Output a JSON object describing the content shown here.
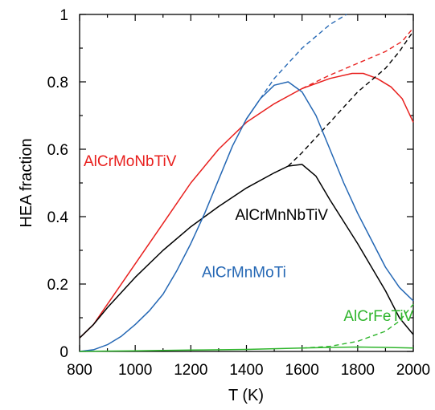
{
  "chart_data": {
    "type": "line",
    "xlabel": "T (K)",
    "ylabel": "HEA fraction",
    "xlim": [
      800,
      2000
    ],
    "ylim": [
      0,
      1
    ],
    "xticks": [
      800,
      1000,
      1200,
      1400,
      1600,
      1800,
      2000
    ],
    "yticks": [
      0,
      0.2,
      0.4,
      0.6,
      0.8,
      1
    ],
    "ytick_labels": [
      "0",
      "0.2",
      "0.4",
      "0.6",
      "0.8",
      "1"
    ],
    "grid": false,
    "series": [
      {
        "name": "AlCrMoNbTiV",
        "color": "#e8201e",
        "label_anchor": [
          800,
          0.55
        ],
        "solid": [
          [
            800,
            0.04
          ],
          [
            850,
            0.08
          ],
          [
            900,
            0.14
          ],
          [
            1000,
            0.26
          ],
          [
            1100,
            0.38
          ],
          [
            1200,
            0.5
          ],
          [
            1300,
            0.6
          ],
          [
            1400,
            0.68
          ],
          [
            1500,
            0.735
          ],
          [
            1600,
            0.78
          ],
          [
            1700,
            0.81
          ],
          [
            1780,
            0.825
          ],
          [
            1820,
            0.825
          ],
          [
            1870,
            0.81
          ],
          [
            1920,
            0.785
          ],
          [
            1960,
            0.75
          ],
          [
            2000,
            0.68
          ]
        ],
        "dashed": [
          [
            1600,
            0.78
          ],
          [
            1700,
            0.82
          ],
          [
            1800,
            0.855
          ],
          [
            1900,
            0.89
          ],
          [
            1960,
            0.92
          ],
          [
            2000,
            0.96
          ]
        ]
      },
      {
        "name": "AlCrMnNbTiV",
        "color": "#000000",
        "label_anchor": [
          1345,
          0.39
        ],
        "solid": [
          [
            800,
            0.04
          ],
          [
            850,
            0.08
          ],
          [
            900,
            0.13
          ],
          [
            1000,
            0.22
          ],
          [
            1100,
            0.3
          ],
          [
            1200,
            0.37
          ],
          [
            1300,
            0.43
          ],
          [
            1400,
            0.485
          ],
          [
            1500,
            0.53
          ],
          [
            1550,
            0.55
          ],
          [
            1600,
            0.555
          ],
          [
            1650,
            0.52
          ],
          [
            1700,
            0.45
          ],
          [
            1800,
            0.32
          ],
          [
            1900,
            0.18
          ],
          [
            1950,
            0.1
          ],
          [
            2000,
            0.05
          ]
        ],
        "dashed": [
          [
            1550,
            0.55
          ],
          [
            1600,
            0.59
          ],
          [
            1700,
            0.68
          ],
          [
            1800,
            0.77
          ],
          [
            1900,
            0.84
          ],
          [
            1950,
            0.89
          ],
          [
            2000,
            0.95
          ]
        ]
      },
      {
        "name": "AlCrMnMoTi",
        "color": "#2467b4",
        "label_anchor": [
          1225,
          0.22
        ],
        "solid": [
          [
            800,
            0.0
          ],
          [
            850,
            0.005
          ],
          [
            900,
            0.02
          ],
          [
            950,
            0.045
          ],
          [
            1000,
            0.08
          ],
          [
            1050,
            0.12
          ],
          [
            1100,
            0.17
          ],
          [
            1150,
            0.24
          ],
          [
            1200,
            0.32
          ],
          [
            1250,
            0.41
          ],
          [
            1300,
            0.51
          ],
          [
            1350,
            0.61
          ],
          [
            1400,
            0.69
          ],
          [
            1450,
            0.75
          ],
          [
            1500,
            0.79
          ],
          [
            1550,
            0.8
          ],
          [
            1600,
            0.77
          ],
          [
            1650,
            0.7
          ],
          [
            1700,
            0.6
          ],
          [
            1750,
            0.5
          ],
          [
            1800,
            0.41
          ],
          [
            1850,
            0.33
          ],
          [
            1900,
            0.25
          ],
          [
            1950,
            0.19
          ],
          [
            2000,
            0.15
          ]
        ],
        "dashed": [
          [
            1400,
            0.69
          ],
          [
            1500,
            0.81
          ],
          [
            1600,
            0.9
          ],
          [
            1700,
            0.97
          ],
          [
            1760,
            1.0
          ]
        ]
      },
      {
        "name": "AlCrFeTiV",
        "color": "#2fb52c",
        "label_anchor": [
          1735,
          0.09
        ],
        "solid": [
          [
            800,
            0.0
          ],
          [
            1000,
            0.002
          ],
          [
            1200,
            0.004
          ],
          [
            1400,
            0.006
          ],
          [
            1600,
            0.01
          ],
          [
            1700,
            0.012
          ],
          [
            1800,
            0.013
          ],
          [
            1900,
            0.012
          ],
          [
            2000,
            0.01
          ]
        ],
        "dashed": [
          [
            1600,
            0.01
          ],
          [
            1700,
            0.015
          ],
          [
            1800,
            0.03
          ],
          [
            1900,
            0.06
          ],
          [
            1950,
            0.09
          ],
          [
            2000,
            0.14
          ]
        ]
      }
    ]
  }
}
